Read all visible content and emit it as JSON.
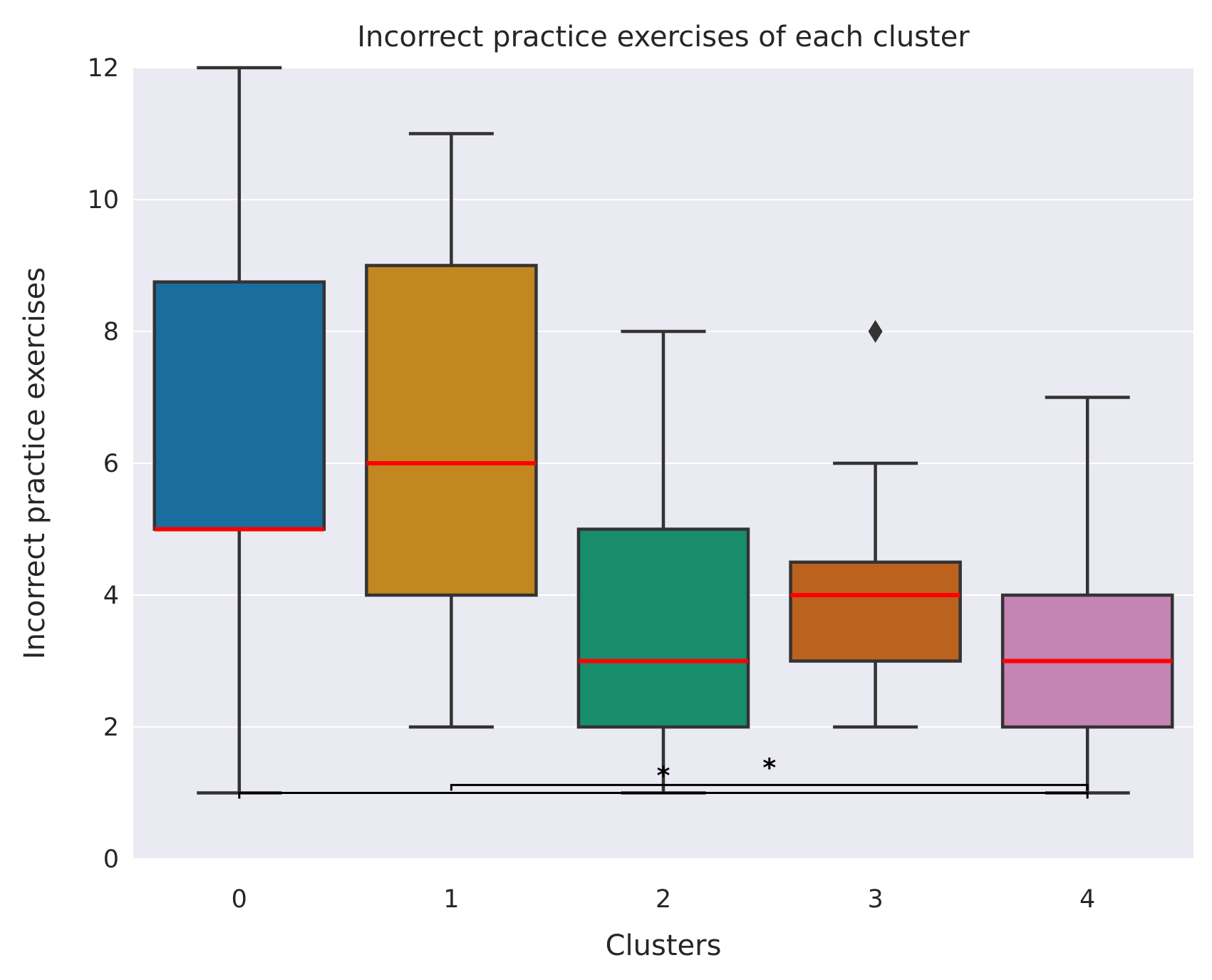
{
  "chart_data": {
    "type": "box",
    "title": "Incorrect practice exercises of each cluster",
    "xlabel": "Clusters",
    "ylabel": "Incorrect practice exercises",
    "ylim": [
      0,
      12
    ],
    "yticks": [
      0,
      2,
      4,
      6,
      8,
      10,
      12
    ],
    "ytick_labels": [
      "0",
      "2",
      "4",
      "6",
      "8",
      "10",
      "12"
    ],
    "grid": true,
    "categories": [
      "0",
      "1",
      "2",
      "3",
      "4"
    ],
    "boxes": [
      {
        "category": "0",
        "whislo": 1,
        "q1": 5,
        "med": 5,
        "q3": 8.75,
        "whishi": 12,
        "fliers": [],
        "color": "#1a6e9e"
      },
      {
        "category": "1",
        "whislo": 2,
        "q1": 4,
        "med": 6,
        "q3": 9,
        "whishi": 11,
        "fliers": [],
        "color": "#c28721"
      },
      {
        "category": "2",
        "whislo": 1,
        "q1": 2,
        "med": 3,
        "q3": 5,
        "whishi": 8,
        "fliers": [],
        "color": "#178d6c"
      },
      {
        "category": "3",
        "whislo": 2,
        "q1": 3,
        "med": 4,
        "q3": 4.5,
        "whishi": 6,
        "fliers": [
          8
        ],
        "color": "#bb621e"
      },
      {
        "category": "4",
        "whislo": 1,
        "q1": 2,
        "med": 3,
        "q3": 4,
        "whishi": 7,
        "fliers": [],
        "color": "#c484b4"
      }
    ],
    "significance": [
      {
        "from": "0",
        "to": "4",
        "y": 1.0,
        "label": "*"
      },
      {
        "from": "1",
        "to": "4",
        "y": 1.12,
        "label": "*"
      }
    ],
    "colors": {
      "background": "#eaeaf2",
      "grid": "#ffffff",
      "median": "#ff0000",
      "edge": "#333333",
      "text": "#262626"
    }
  }
}
